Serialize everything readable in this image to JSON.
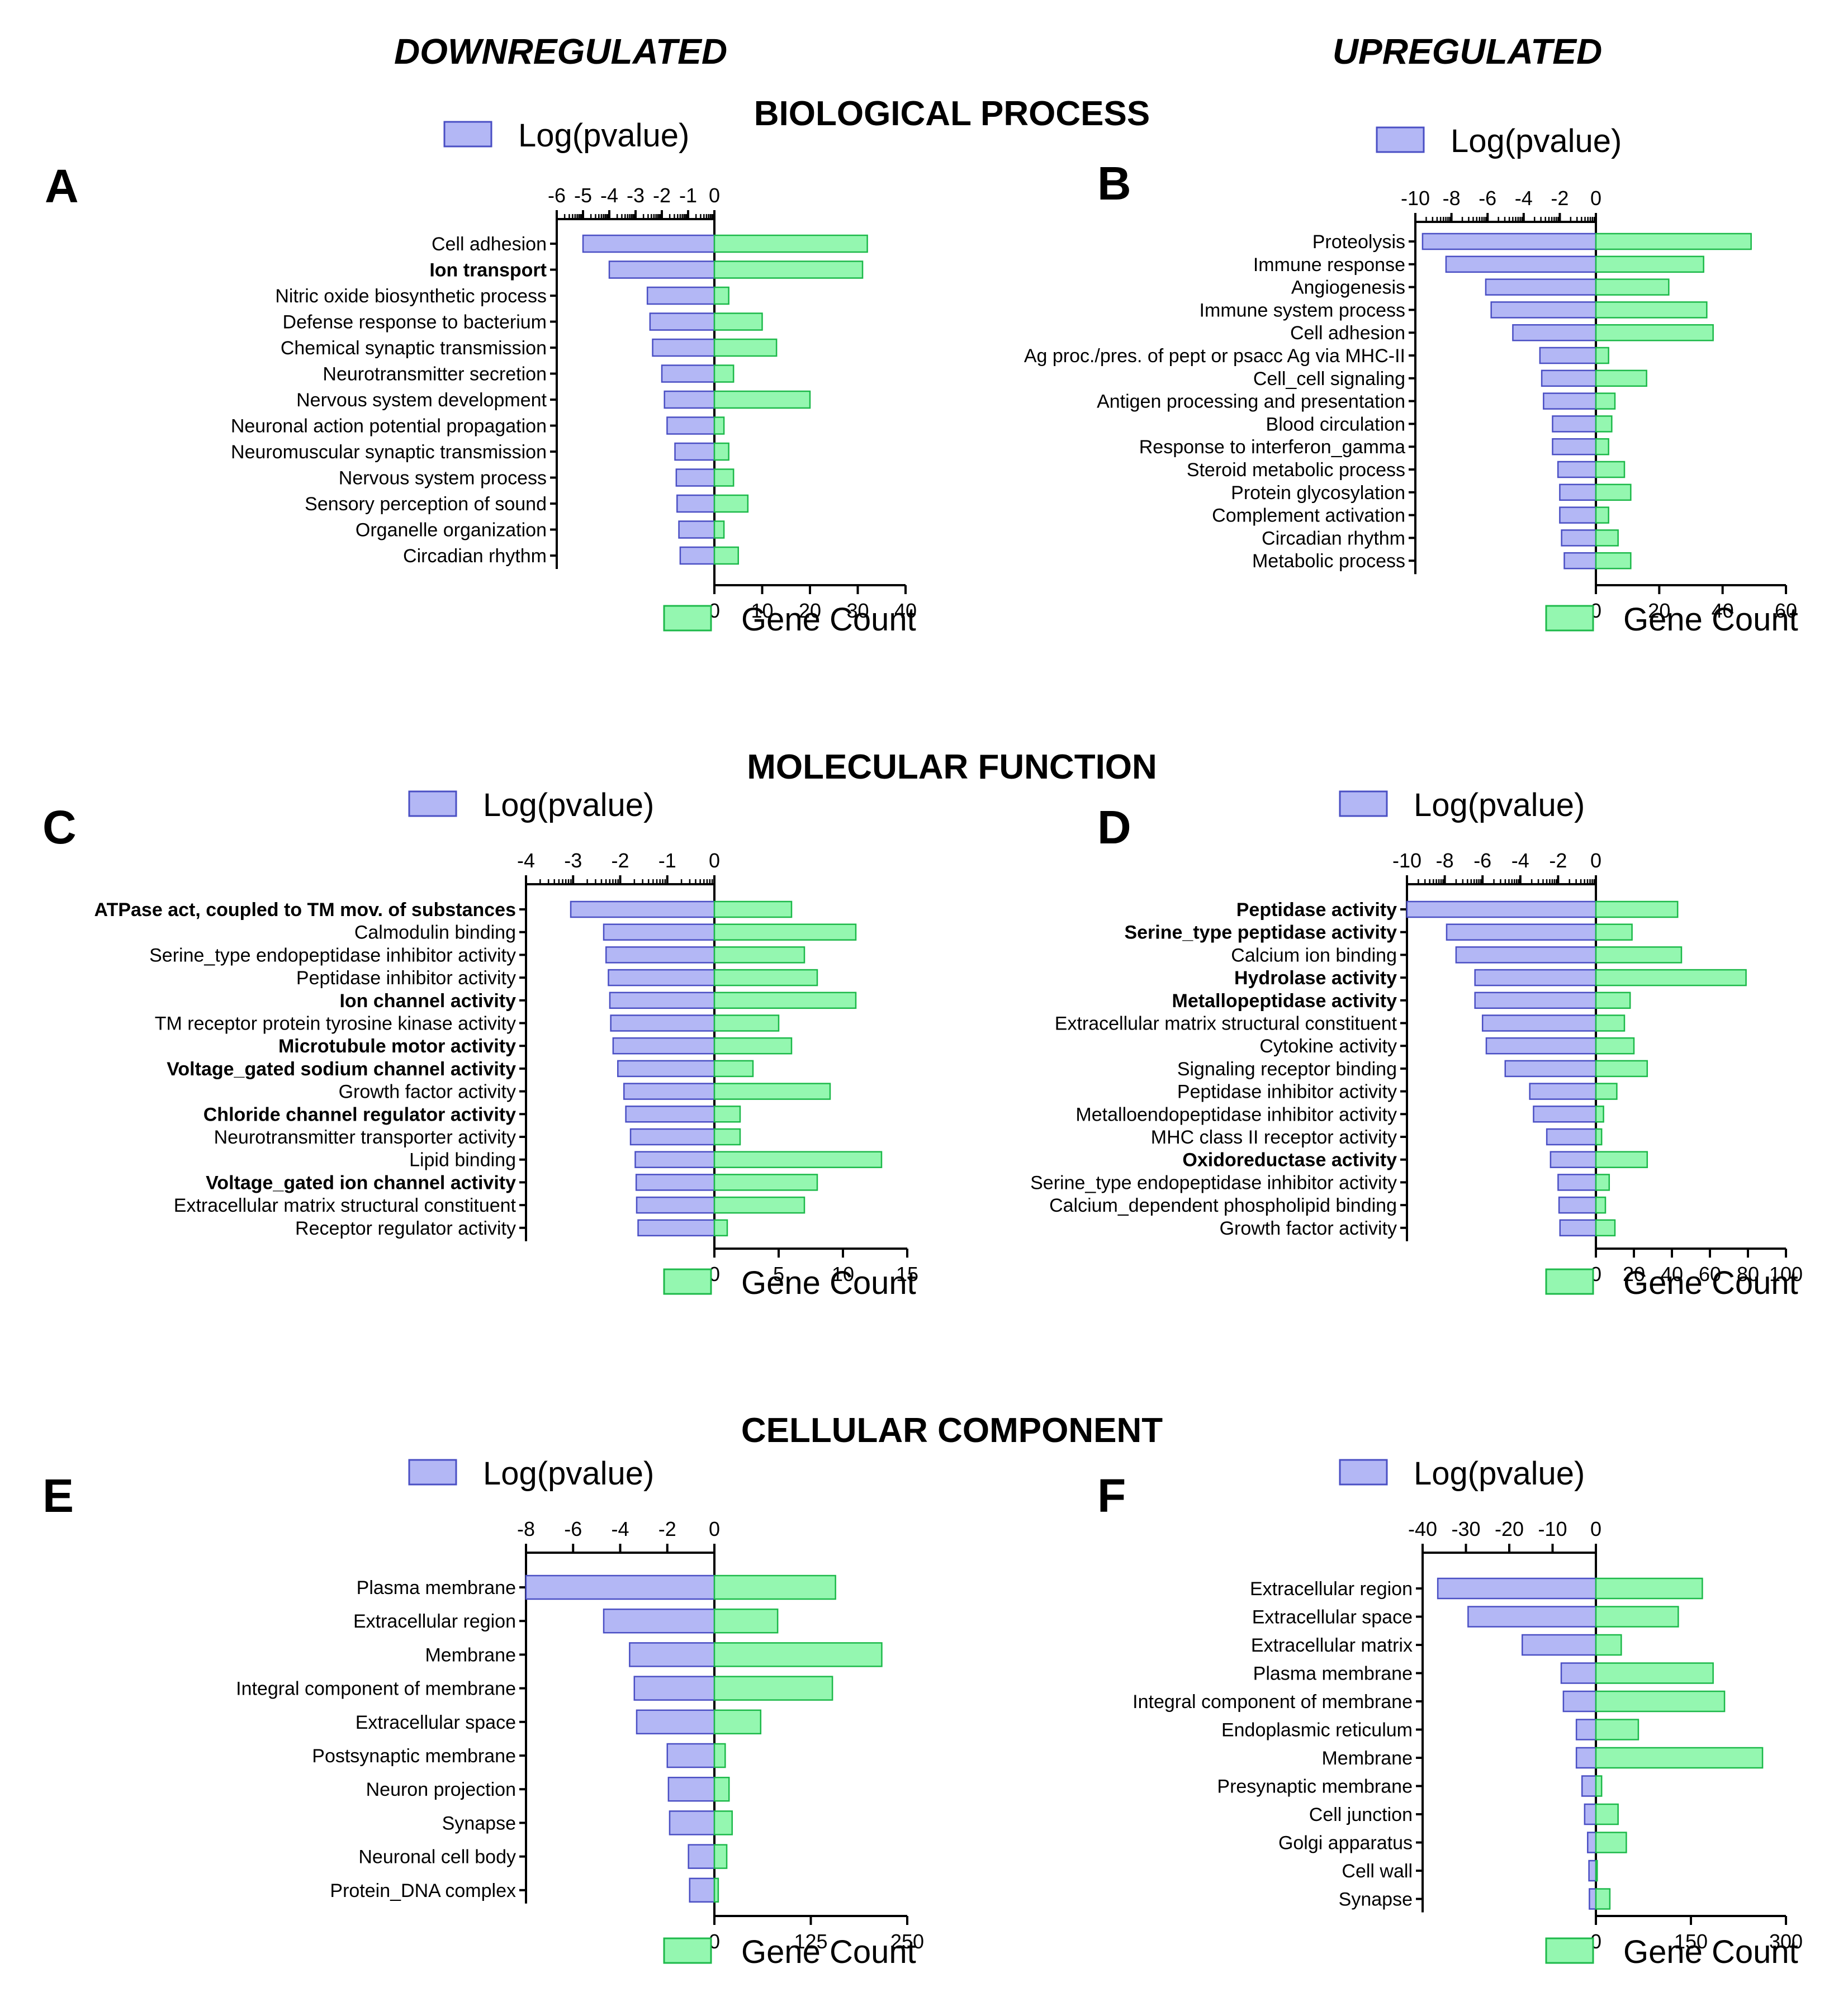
{
  "headers": {
    "left": "DOWNREGULATED",
    "right": "UPREGULATED",
    "sections": [
      "BIOLOGICAL PROCESS",
      "MOLECULAR FUNCTION",
      "CELLULAR COMPONENT"
    ]
  },
  "colors": {
    "pvalue_fill": "#b3b7f5",
    "pvalue_stroke": "#4a4fc4",
    "count_fill": "#94f7b0",
    "count_stroke": "#1db94a",
    "axis": "#000000"
  },
  "chart_data": [
    {
      "panel": "A",
      "type": "bar",
      "orientation": "horizontal-diverging",
      "legend_pvalue": "Log(pvalue)",
      "legend_count": "Gene Count",
      "pvalue_range": [
        -6,
        0
      ],
      "pvalue_ticks": [
        "-6",
        "-5",
        "-4",
        "-3",
        "-2",
        "-1",
        "0"
      ],
      "count_range": [
        0,
        40
      ],
      "count_ticks": [
        "0",
        "10",
        "20",
        "30",
        "40"
      ],
      "categories": [
        "Cell adhesion",
        "Ion transport",
        "Nitric oxide biosynthetic process",
        "Defense response to bacterium",
        "Chemical synaptic transmission",
        "Neurotransmitter secretion",
        "Nervous system development",
        "Neuronal action potential propagation",
        "Neuromuscular synaptic transmission",
        "Nervous system process",
        "Sensory perception of sound",
        "Organelle organization",
        "Circadian rhythm"
      ],
      "bold": [
        false,
        true,
        false,
        false,
        false,
        false,
        false,
        false,
        false,
        false,
        false,
        false,
        false
      ],
      "log_pvalue": [
        -5.0,
        -4.0,
        -2.55,
        -2.45,
        -2.35,
        -2.0,
        -1.9,
        -1.8,
        -1.5,
        -1.45,
        -1.42,
        -1.35,
        -1.3
      ],
      "gene_count": [
        32,
        31,
        3,
        10,
        13,
        4,
        20,
        2,
        3,
        4,
        7,
        2,
        5
      ]
    },
    {
      "panel": "B",
      "type": "bar",
      "orientation": "horizontal-diverging",
      "legend_pvalue": "Log(pvalue)",
      "legend_count": "Gene Count",
      "pvalue_range": [
        -10,
        0
      ],
      "pvalue_ticks": [
        "-10",
        "-8",
        "-6",
        "-4",
        "-2",
        "0"
      ],
      "count_range": [
        0,
        60
      ],
      "count_ticks": [
        "0",
        "20",
        "40",
        "60"
      ],
      "categories": [
        "Proteolysis",
        "Immune response",
        "Angiogenesis",
        "Immune system process",
        "Cell adhesion",
        "Ag proc./pres. of pept or psacc Ag via MHC-II",
        "Cell_cell signaling",
        "Antigen processing and presentation",
        "Blood circulation",
        "Response to interferon_gamma",
        "Steroid metabolic process",
        "Protein glycosylation",
        "Complement activation",
        "Circadian rhythm",
        "Metabolic process"
      ],
      "bold": [
        false,
        false,
        false,
        false,
        false,
        false,
        false,
        false,
        false,
        false,
        false,
        false,
        false,
        false,
        false
      ],
      "log_pvalue": [
        -9.6,
        -8.3,
        -6.1,
        -5.8,
        -4.6,
        -3.1,
        -3.0,
        -2.9,
        -2.4,
        -2.4,
        -2.1,
        -2.0,
        -2.0,
        -1.9,
        -1.75
      ],
      "gene_count": [
        49,
        34,
        23,
        35,
        37,
        4,
        16,
        6,
        5,
        4,
        9,
        11,
        4,
        7,
        11
      ]
    },
    {
      "panel": "C",
      "type": "bar",
      "orientation": "horizontal-diverging",
      "legend_pvalue": "Log(pvalue)",
      "legend_count": "Gene Count",
      "pvalue_range": [
        -4,
        0
      ],
      "pvalue_ticks": [
        "-4",
        "-3",
        "-2",
        "-1",
        "0"
      ],
      "count_range": [
        0,
        15
      ],
      "count_ticks": [
        "0",
        "5",
        "10",
        "15"
      ],
      "categories": [
        "ATPase act, coupled to TM mov. of substances",
        "Calmodulin binding",
        "Serine_type endopeptidase inhibitor activity",
        "Peptidase inhibitor activity",
        "Ion channel activity",
        "TM receptor protein tyrosine kinase activity",
        "Microtubule motor activity",
        "Voltage_gated sodium channel activity",
        "Growth factor activity",
        "Chloride channel regulator activity",
        "Neurotransmitter transporter activity",
        "Lipid binding",
        "Voltage_gated ion channel activity",
        "Extracellular matrix structural constituent",
        "Receptor regulator activity"
      ],
      "bold": [
        true,
        false,
        false,
        false,
        true,
        false,
        true,
        true,
        false,
        true,
        false,
        false,
        true,
        false,
        false
      ],
      "log_pvalue": [
        -3.05,
        -2.35,
        -2.3,
        -2.25,
        -2.22,
        -2.2,
        -2.15,
        -2.05,
        -1.92,
        -1.88,
        -1.78,
        -1.68,
        -1.66,
        -1.65,
        -1.62
      ],
      "gene_count": [
        6,
        11,
        7,
        8,
        11,
        5,
        6,
        3,
        9,
        2,
        2,
        13,
        8,
        7,
        1
      ]
    },
    {
      "panel": "D",
      "type": "bar",
      "orientation": "horizontal-diverging",
      "legend_pvalue": "Log(pvalue)",
      "legend_count": "Gene Count",
      "pvalue_range": [
        -10,
        0
      ],
      "pvalue_ticks": [
        "-10",
        "-8",
        "-6",
        "-4",
        "-2",
        "0"
      ],
      "count_range": [
        0,
        100
      ],
      "count_ticks": [
        "0",
        "20",
        "40",
        "60",
        "80",
        "100"
      ],
      "categories": [
        "Peptidase activity",
        "Serine_type peptidase activity",
        "Calcium ion binding",
        "Hydrolase activity",
        "Metallopeptidase activity",
        "Extracellular matrix structural constituent",
        "Cytokine activity",
        "Signaling receptor binding",
        "Peptidase inhibitor activity",
        "Metalloendopeptidase inhibitor activity",
        "MHC class II receptor activity",
        "Oxidoreductase activity",
        "Serine_type endopeptidase inhibitor activity",
        "Calcium_dependent phospholipid binding",
        "Growth factor activity"
      ],
      "bold": [
        true,
        true,
        false,
        true,
        true,
        false,
        false,
        false,
        false,
        false,
        false,
        true,
        false,
        false,
        false
      ],
      "log_pvalue": [
        -10.0,
        -7.9,
        -7.4,
        -6.4,
        -6.4,
        -6.0,
        -5.8,
        -4.8,
        -3.5,
        -3.3,
        -2.6,
        -2.4,
        -2.0,
        -1.95,
        -1.9
      ],
      "gene_count": [
        43,
        19,
        45,
        79,
        18,
        15,
        20,
        27,
        11,
        4,
        3,
        27,
        7,
        5,
        10
      ]
    },
    {
      "panel": "E",
      "type": "bar",
      "orientation": "horizontal-diverging",
      "legend_pvalue": "Log(pvalue)",
      "legend_count": "Gene Count",
      "pvalue_range": [
        -8,
        0
      ],
      "pvalue_ticks": [
        "-8",
        "-6",
        "-4",
        "-2",
        "0"
      ],
      "count_range": [
        0,
        250
      ],
      "count_ticks": [
        "0",
        "125",
        "250"
      ],
      "categories": [
        "Plasma membrane",
        "Extracellular region",
        "Membrane",
        "Integral component of membrane",
        "Extracellular space",
        "Postsynaptic membrane",
        "Neuron projection",
        "Synapse",
        "Neuronal cell body",
        "Protein_DNA complex"
      ],
      "bold": [
        false,
        false,
        false,
        false,
        false,
        false,
        false,
        false,
        false,
        false
      ],
      "log_pvalue": [
        -8.0,
        -4.7,
        -3.6,
        -3.4,
        -3.3,
        -2.0,
        -1.95,
        -1.9,
        -1.1,
        -1.05
      ],
      "gene_count": [
        157,
        82,
        217,
        153,
        60,
        14,
        19,
        23,
        16,
        5
      ]
    },
    {
      "panel": "F",
      "type": "bar",
      "orientation": "horizontal-diverging",
      "legend_pvalue": "Log(pvalue)",
      "legend_count": "Gene Count",
      "pvalue_range": [
        -40,
        0
      ],
      "pvalue_ticks": [
        "-40",
        "-30",
        "-20",
        "-10",
        "0"
      ],
      "count_range": [
        0,
        300
      ],
      "count_ticks": [
        "0",
        "150",
        "300"
      ],
      "categories": [
        "Extracellular region",
        "Extracellular space",
        "Extracellular matrix",
        "Plasma membrane",
        "Integral component of membrane",
        "Endoplasmic reticulum",
        "Membrane",
        "Presynaptic membrane",
        "Cell junction",
        "Golgi apparatus",
        "Cell wall",
        "Synapse"
      ],
      "bold": [
        false,
        false,
        false,
        false,
        false,
        false,
        false,
        false,
        false,
        false,
        false,
        false
      ],
      "log_pvalue": [
        -36.5,
        -29.5,
        -17.0,
        -8.0,
        -7.5,
        -4.5,
        -4.5,
        -3.2,
        -2.6,
        -1.9,
        -1.6,
        -1.5
      ],
      "gene_count": [
        168,
        130,
        40,
        185,
        203,
        67,
        263,
        9,
        35,
        48,
        2,
        22
      ]
    }
  ]
}
